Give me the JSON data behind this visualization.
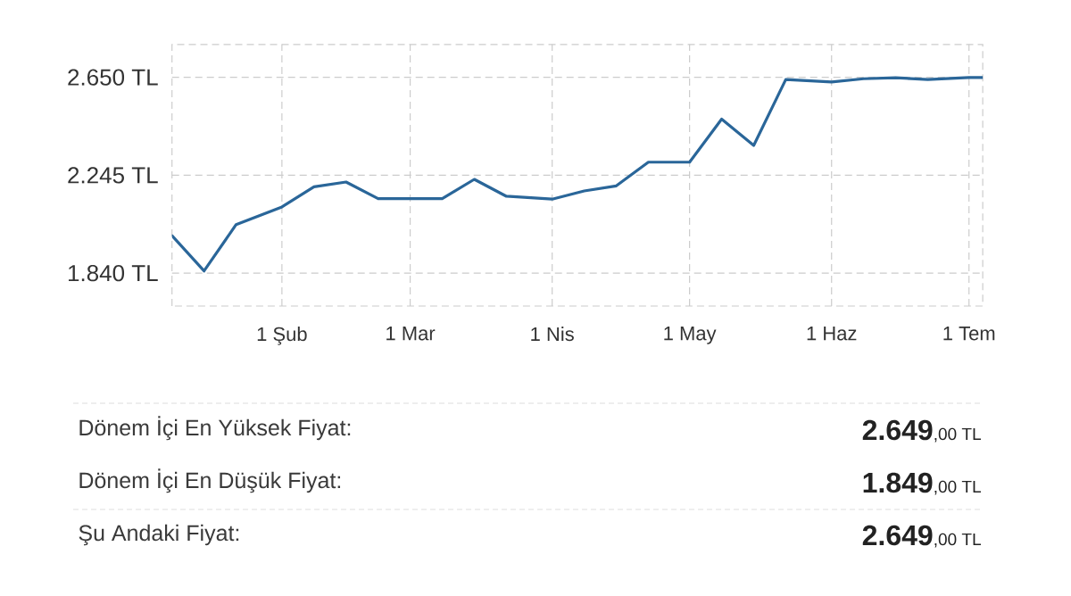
{
  "chart_data": {
    "type": "line",
    "x": [
      "--01-08",
      "--01-15",
      "--01-22",
      "--02-01",
      "--02-08",
      "--02-15",
      "--02-22",
      "--03-01",
      "--03-08",
      "--03-15",
      "--03-22",
      "--04-01",
      "--04-08",
      "--04-15",
      "--04-22",
      "--05-01",
      "--05-08",
      "--05-15",
      "--05-22",
      "--06-01",
      "--06-08",
      "--06-15",
      "--06-22",
      "--07-01",
      "--07-04"
    ],
    "values": [
      1995,
      1849,
      2041,
      2114,
      2197,
      2217,
      2148,
      2148,
      2148,
      2228,
      2158,
      2146,
      2180,
      2201,
      2299,
      2299,
      2477,
      2368,
      2641,
      2631,
      2644,
      2648,
      2641,
      2649,
      2649
    ],
    "color": "#2a6699",
    "xlim": [
      "--01-08",
      "--07-04"
    ],
    "xticks": [
      {
        "value": "--02-01",
        "label": "1 Şub"
      },
      {
        "value": "--03-01",
        "label": "1 Mar"
      },
      {
        "value": "--04-01",
        "label": "1 Nis"
      },
      {
        "value": "--05-01",
        "label": "1 May"
      },
      {
        "value": "--06-01",
        "label": "1 Haz"
      },
      {
        "value": "--07-01",
        "label": "1 Tem"
      }
    ],
    "ylim": [
      1704,
      2786
    ],
    "yticks": [
      {
        "value": 1840,
        "label": "1.840 TL"
      },
      {
        "value": 2245,
        "label": "2.245 TL"
      },
      {
        "value": 2650,
        "label": "2.650 TL"
      }
    ],
    "grid": true,
    "annotations": [
      "Dönem İçi En Yüksek Fiyat:",
      "**2.649**,00 TL",
      "Dönem İçi En Düşük Fiyat:",
      "**1.849**,00 TL",
      "Şu Andaki Fiyat:",
      "**2.649**,00 TL"
    ]
  }
}
